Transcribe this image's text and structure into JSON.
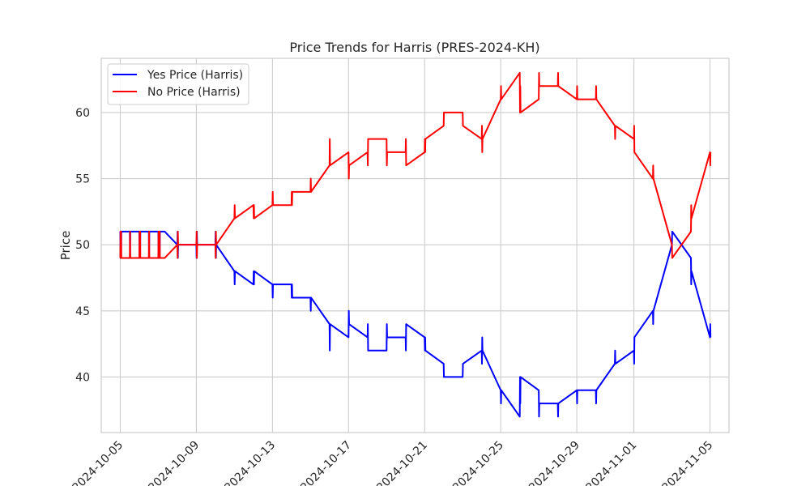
{
  "chart_data": {
    "type": "line",
    "title": "Price Trends for Harris (PRES-2024-KH)",
    "xlabel": "",
    "ylabel": "Price",
    "x_type": "date",
    "xlim": [
      "2024-10-04T00:00",
      "2024-11-06T00:00"
    ],
    "ylim": [
      35.8,
      64.1
    ],
    "x_ticks": [
      "2024-10-05",
      "2024-10-09",
      "2024-10-13",
      "2024-10-17",
      "2024-10-21",
      "2024-10-25",
      "2024-10-29",
      "2024-11-01",
      "2024-11-05"
    ],
    "y_ticks": [
      40,
      45,
      50,
      55,
      60
    ],
    "grid": true,
    "legend_position": "top-left",
    "series": [
      {
        "name": "Yes Price (Harris)",
        "color": "#0000ff",
        "points": [
          [
            "2024-10-05T00:00",
            51
          ],
          [
            "2024-10-05T00:20",
            49
          ],
          [
            "2024-10-05T00:40",
            51
          ],
          [
            "2024-10-05T01:00",
            49
          ],
          [
            "2024-10-05T01:20",
            51
          ],
          [
            "2024-10-05T12:00",
            51
          ],
          [
            "2024-10-05T12:20",
            49
          ],
          [
            "2024-10-05T12:40",
            51
          ],
          [
            "2024-10-06T00:00",
            51
          ],
          [
            "2024-10-06T00:20",
            49
          ],
          [
            "2024-10-06T00:40",
            51
          ],
          [
            "2024-10-06T01:00",
            49
          ],
          [
            "2024-10-06T01:20",
            51
          ],
          [
            "2024-10-06T12:00",
            51
          ],
          [
            "2024-10-06T12:20",
            49
          ],
          [
            "2024-10-06T12:40",
            51
          ],
          [
            "2024-10-07T00:00",
            51
          ],
          [
            "2024-10-07T00:20",
            49
          ],
          [
            "2024-10-07T00:40",
            51
          ],
          [
            "2024-10-07T01:00",
            49
          ],
          [
            "2024-10-07T01:20",
            51
          ],
          [
            "2024-10-07T01:40",
            49
          ],
          [
            "2024-10-07T02:00",
            51
          ],
          [
            "2024-10-07T08:00",
            51
          ],
          [
            "2024-10-08T00:00",
            50
          ],
          [
            "2024-10-08T00:20",
            51
          ],
          [
            "2024-10-08T00:40",
            49
          ],
          [
            "2024-10-08T01:00",
            50
          ],
          [
            "2024-10-09T00:00",
            50
          ],
          [
            "2024-10-09T00:20",
            49
          ],
          [
            "2024-10-09T00:40",
            51
          ],
          [
            "2024-10-09T01:00",
            50
          ],
          [
            "2024-10-10T00:00",
            50
          ],
          [
            "2024-10-10T00:20",
            51
          ],
          [
            "2024-10-10T00:40",
            49
          ],
          [
            "2024-10-10T01:00",
            50
          ],
          [
            "2024-10-11T00:00",
            48
          ],
          [
            "2024-10-11T00:20",
            47
          ],
          [
            "2024-10-11T00:40",
            48
          ],
          [
            "2024-10-12T00:00",
            47
          ],
          [
            "2024-10-12T00:20",
            48
          ],
          [
            "2024-10-12T00:40",
            47
          ],
          [
            "2024-10-12T01:00",
            48
          ],
          [
            "2024-10-13T00:00",
            47
          ],
          [
            "2024-10-13T00:20",
            46
          ],
          [
            "2024-10-13T00:40",
            47
          ],
          [
            "2024-10-14T00:00",
            47
          ],
          [
            "2024-10-14T00:20",
            46
          ],
          [
            "2024-10-14T00:40",
            47
          ],
          [
            "2024-10-14T01:00",
            46
          ],
          [
            "2024-10-15T00:00",
            46
          ],
          [
            "2024-10-15T00:20",
            45
          ],
          [
            "2024-10-15T00:40",
            46
          ],
          [
            "2024-10-16T00:00",
            44
          ],
          [
            "2024-10-16T00:20",
            42
          ],
          [
            "2024-10-16T00:40",
            44
          ],
          [
            "2024-10-17T00:00",
            43
          ],
          [
            "2024-10-17T00:20",
            45
          ],
          [
            "2024-10-17T00:40",
            44
          ],
          [
            "2024-10-18T00:00",
            43
          ],
          [
            "2024-10-18T00:20",
            44
          ],
          [
            "2024-10-18T00:40",
            42
          ],
          [
            "2024-10-19T00:00",
            42
          ],
          [
            "2024-10-19T00:20",
            44
          ],
          [
            "2024-10-19T00:40",
            43
          ],
          [
            "2024-10-20T00:00",
            43
          ],
          [
            "2024-10-20T00:20",
            42
          ],
          [
            "2024-10-20T00:40",
            44
          ],
          [
            "2024-10-21T00:00",
            43
          ],
          [
            "2024-10-21T00:20",
            42
          ],
          [
            "2024-10-21T00:40",
            43
          ],
          [
            "2024-10-21T01:00",
            42
          ],
          [
            "2024-10-22T00:00",
            41
          ],
          [
            "2024-10-22T00:20",
            40
          ],
          [
            "2024-10-23T00:00",
            40
          ],
          [
            "2024-10-23T00:20",
            41
          ],
          [
            "2024-10-24T00:00",
            42
          ],
          [
            "2024-10-24T00:20",
            41
          ],
          [
            "2024-10-24T00:40",
            43
          ],
          [
            "2024-10-24T01:00",
            42
          ],
          [
            "2024-10-25T00:00",
            39
          ],
          [
            "2024-10-25T00:20",
            38
          ],
          [
            "2024-10-25T00:40",
            39
          ],
          [
            "2024-10-26T00:00",
            37
          ],
          [
            "2024-10-26T00:20",
            40
          ],
          [
            "2024-10-26T00:40",
            38
          ],
          [
            "2024-10-26T01:00",
            40
          ],
          [
            "2024-10-27T00:00",
            39
          ],
          [
            "2024-10-27T00:20",
            37
          ],
          [
            "2024-10-27T00:40",
            38
          ],
          [
            "2024-10-28T00:00",
            38
          ],
          [
            "2024-10-28T00:20",
            37
          ],
          [
            "2024-10-28T00:40",
            38
          ],
          [
            "2024-10-29T00:00",
            39
          ],
          [
            "2024-10-29T00:20",
            38
          ],
          [
            "2024-10-29T00:40",
            39
          ],
          [
            "2024-10-30T00:00",
            39
          ],
          [
            "2024-10-30T00:20",
            38
          ],
          [
            "2024-10-30T00:40",
            39
          ],
          [
            "2024-10-31T00:00",
            41
          ],
          [
            "2024-10-31T00:20",
            42
          ],
          [
            "2024-10-31T00:40",
            41
          ],
          [
            "2024-11-01T00:00",
            42
          ],
          [
            "2024-11-01T00:20",
            41
          ],
          [
            "2024-11-01T00:40",
            43
          ],
          [
            "2024-11-02T00:00",
            45
          ],
          [
            "2024-11-02T00:20",
            44
          ],
          [
            "2024-11-02T00:40",
            45
          ],
          [
            "2024-11-03T00:00",
            50
          ],
          [
            "2024-11-03T00:20",
            51
          ],
          [
            "2024-11-04T00:00",
            49
          ],
          [
            "2024-11-04T00:20",
            47
          ],
          [
            "2024-11-04T00:40",
            48
          ],
          [
            "2024-11-05T00:00",
            43
          ],
          [
            "2024-11-05T00:20",
            44
          ],
          [
            "2024-11-05T00:40",
            43
          ]
        ]
      },
      {
        "name": "No Price (Harris)",
        "color": "#ff0000",
        "points": [
          [
            "2024-10-05T00:00",
            49
          ],
          [
            "2024-10-05T00:20",
            51
          ],
          [
            "2024-10-05T00:40",
            49
          ],
          [
            "2024-10-05T01:00",
            51
          ],
          [
            "2024-10-05T01:20",
            49
          ],
          [
            "2024-10-05T12:00",
            49
          ],
          [
            "2024-10-05T12:20",
            51
          ],
          [
            "2024-10-05T12:40",
            49
          ],
          [
            "2024-10-06T00:00",
            49
          ],
          [
            "2024-10-06T00:20",
            51
          ],
          [
            "2024-10-06T00:40",
            49
          ],
          [
            "2024-10-06T01:00",
            51
          ],
          [
            "2024-10-06T01:20",
            49
          ],
          [
            "2024-10-06T12:00",
            49
          ],
          [
            "2024-10-06T12:20",
            51
          ],
          [
            "2024-10-06T12:40",
            49
          ],
          [
            "2024-10-07T00:00",
            49
          ],
          [
            "2024-10-07T00:20",
            51
          ],
          [
            "2024-10-07T00:40",
            49
          ],
          [
            "2024-10-07T01:00",
            51
          ],
          [
            "2024-10-07T01:20",
            49
          ],
          [
            "2024-10-07T01:40",
            51
          ],
          [
            "2024-10-07T02:00",
            49
          ],
          [
            "2024-10-07T08:00",
            49
          ],
          [
            "2024-10-08T00:00",
            50
          ],
          [
            "2024-10-08T00:20",
            49
          ],
          [
            "2024-10-08T00:40",
            51
          ],
          [
            "2024-10-08T01:00",
            50
          ],
          [
            "2024-10-09T00:00",
            50
          ],
          [
            "2024-10-09T00:20",
            51
          ],
          [
            "2024-10-09T00:40",
            49
          ],
          [
            "2024-10-09T01:00",
            50
          ],
          [
            "2024-10-10T00:00",
            50
          ],
          [
            "2024-10-10T00:20",
            49
          ],
          [
            "2024-10-10T00:40",
            51
          ],
          [
            "2024-10-10T01:00",
            50
          ],
          [
            "2024-10-11T00:00",
            52
          ],
          [
            "2024-10-11T00:20",
            53
          ],
          [
            "2024-10-11T00:40",
            52
          ],
          [
            "2024-10-12T00:00",
            53
          ],
          [
            "2024-10-12T00:20",
            52
          ],
          [
            "2024-10-12T00:40",
            53
          ],
          [
            "2024-10-12T01:00",
            52
          ],
          [
            "2024-10-13T00:00",
            53
          ],
          [
            "2024-10-13T00:20",
            54
          ],
          [
            "2024-10-13T00:40",
            53
          ],
          [
            "2024-10-14T00:00",
            53
          ],
          [
            "2024-10-14T00:20",
            54
          ],
          [
            "2024-10-14T00:40",
            53
          ],
          [
            "2024-10-14T01:00",
            54
          ],
          [
            "2024-10-15T00:00",
            54
          ],
          [
            "2024-10-15T00:20",
            55
          ],
          [
            "2024-10-15T00:40",
            54
          ],
          [
            "2024-10-16T00:00",
            56
          ],
          [
            "2024-10-16T00:20",
            58
          ],
          [
            "2024-10-16T00:40",
            56
          ],
          [
            "2024-10-17T00:00",
            57
          ],
          [
            "2024-10-17T00:20",
            55
          ],
          [
            "2024-10-17T00:40",
            56
          ],
          [
            "2024-10-18T00:00",
            57
          ],
          [
            "2024-10-18T00:20",
            56
          ],
          [
            "2024-10-18T00:40",
            58
          ],
          [
            "2024-10-19T00:00",
            58
          ],
          [
            "2024-10-19T00:20",
            56
          ],
          [
            "2024-10-19T00:40",
            57
          ],
          [
            "2024-10-20T00:00",
            57
          ],
          [
            "2024-10-20T00:20",
            58
          ],
          [
            "2024-10-20T00:40",
            56
          ],
          [
            "2024-10-21T00:00",
            57
          ],
          [
            "2024-10-21T00:20",
            58
          ],
          [
            "2024-10-21T00:40",
            57
          ],
          [
            "2024-10-21T01:00",
            58
          ],
          [
            "2024-10-22T00:00",
            59
          ],
          [
            "2024-10-22T00:20",
            60
          ],
          [
            "2024-10-23T00:00",
            60
          ],
          [
            "2024-10-23T00:20",
            59
          ],
          [
            "2024-10-24T00:00",
            58
          ],
          [
            "2024-10-24T00:20",
            59
          ],
          [
            "2024-10-24T00:40",
            57
          ],
          [
            "2024-10-24T01:00",
            58
          ],
          [
            "2024-10-25T00:00",
            61
          ],
          [
            "2024-10-25T00:20",
            62
          ],
          [
            "2024-10-25T00:40",
            61
          ],
          [
            "2024-10-26T00:00",
            63
          ],
          [
            "2024-10-26T00:20",
            60
          ],
          [
            "2024-10-26T00:40",
            62
          ],
          [
            "2024-10-26T01:00",
            60
          ],
          [
            "2024-10-27T00:00",
            61
          ],
          [
            "2024-10-27T00:20",
            63
          ],
          [
            "2024-10-27T00:40",
            62
          ],
          [
            "2024-10-28T00:00",
            62
          ],
          [
            "2024-10-28T00:20",
            63
          ],
          [
            "2024-10-28T00:40",
            62
          ],
          [
            "2024-10-29T00:00",
            61
          ],
          [
            "2024-10-29T00:20",
            62
          ],
          [
            "2024-10-29T00:40",
            61
          ],
          [
            "2024-10-30T00:00",
            61
          ],
          [
            "2024-10-30T00:20",
            62
          ],
          [
            "2024-10-30T00:40",
            61
          ],
          [
            "2024-10-31T00:00",
            59
          ],
          [
            "2024-10-31T00:20",
            58
          ],
          [
            "2024-10-31T00:40",
            59
          ],
          [
            "2024-11-01T00:00",
            58
          ],
          [
            "2024-11-01T00:20",
            59
          ],
          [
            "2024-11-01T00:40",
            57
          ],
          [
            "2024-11-02T00:00",
            55
          ],
          [
            "2024-11-02T00:20",
            56
          ],
          [
            "2024-11-02T00:40",
            55
          ],
          [
            "2024-11-03T00:00",
            50
          ],
          [
            "2024-11-03T00:20",
            49
          ],
          [
            "2024-11-04T00:00",
            51
          ],
          [
            "2024-11-04T00:20",
            53
          ],
          [
            "2024-11-04T00:40",
            52
          ],
          [
            "2024-11-05T00:00",
            57
          ],
          [
            "2024-11-05T00:20",
            56
          ],
          [
            "2024-11-05T00:40",
            57
          ]
        ]
      }
    ]
  }
}
